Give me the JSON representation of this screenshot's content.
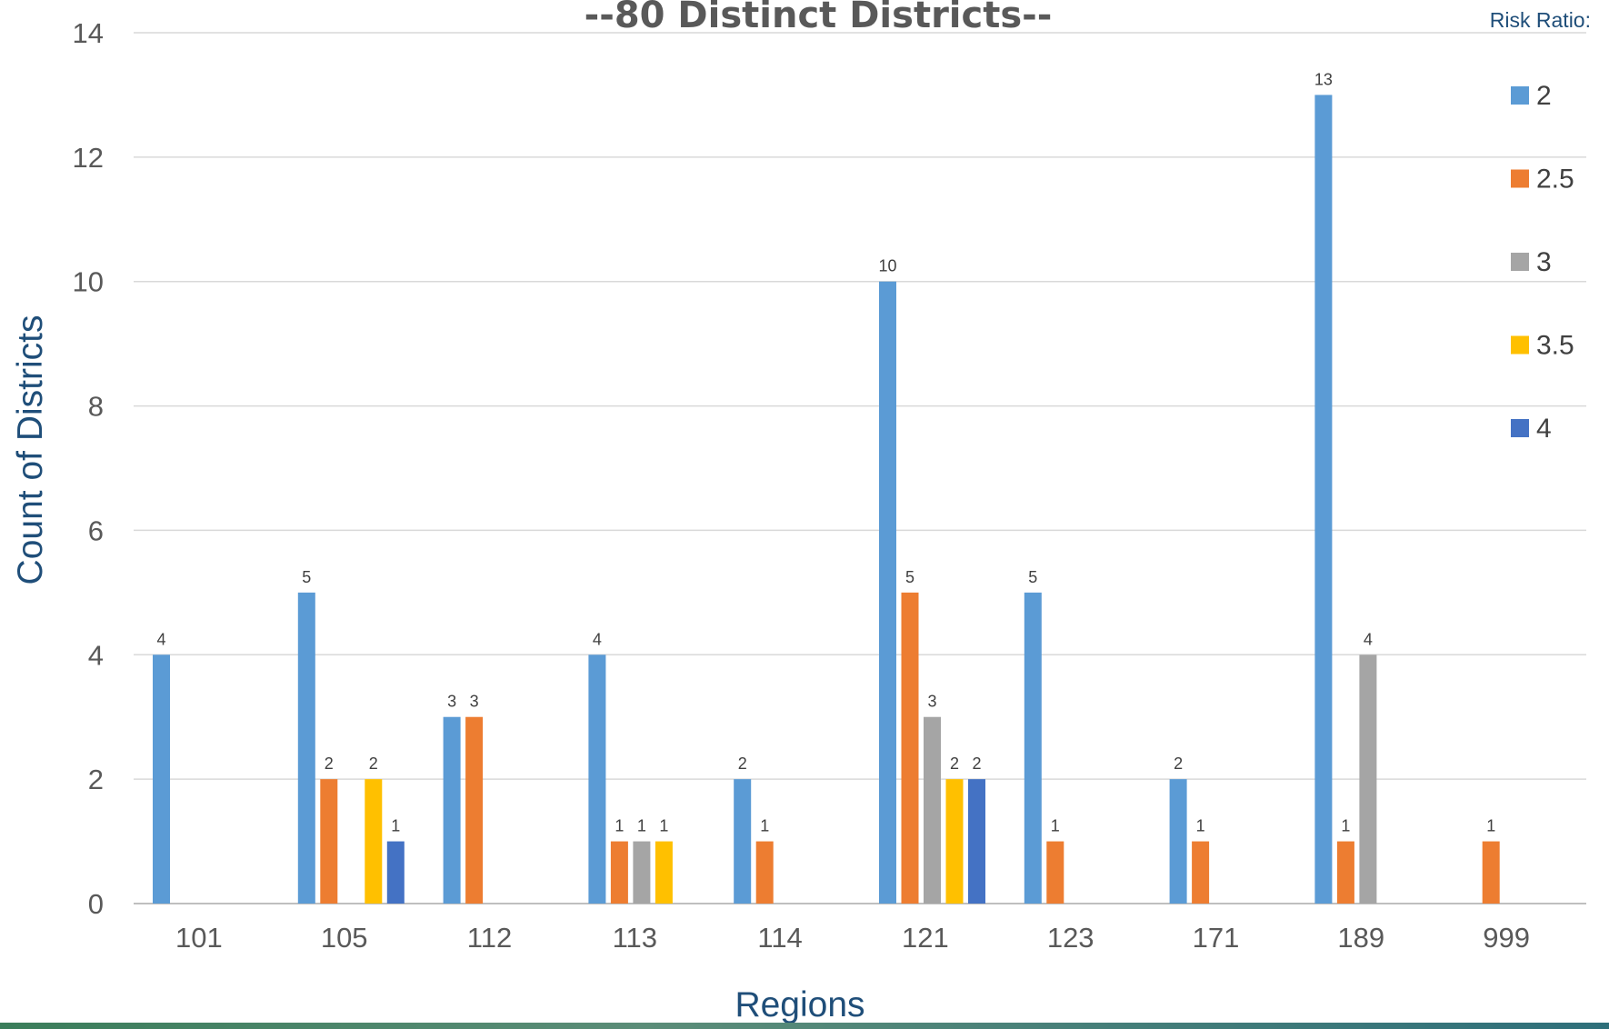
{
  "chart_data": {
    "type": "bar",
    "title": "--80 Distinct Districts--",
    "xlabel": "Regions",
    "ylabel": "Count of Districts",
    "ylim": [
      0,
      14
    ],
    "yticks": [
      0,
      2,
      4,
      6,
      8,
      10,
      12,
      14
    ],
    "grid": true,
    "categories": [
      "101",
      "105",
      "112",
      "113",
      "114",
      "121",
      "123",
      "171",
      "189",
      "999"
    ],
    "legend": {
      "title": "Risk Ratio:",
      "placement": "right"
    },
    "series": [
      {
        "name": "2",
        "color": "#5b9bd5",
        "values": [
          4,
          5,
          3,
          4,
          2,
          10,
          5,
          2,
          13,
          null
        ]
      },
      {
        "name": "2.5",
        "color": "#ed7d31",
        "values": [
          null,
          2,
          3,
          1,
          1,
          5,
          1,
          1,
          1,
          1
        ]
      },
      {
        "name": "3",
        "color": "#a5a5a5",
        "values": [
          null,
          null,
          null,
          1,
          null,
          3,
          null,
          null,
          4,
          null
        ]
      },
      {
        "name": "3.5",
        "color": "#ffc000",
        "values": [
          null,
          2,
          null,
          1,
          null,
          2,
          null,
          null,
          null,
          null
        ]
      },
      {
        "name": "4",
        "color": "#4472c4",
        "values": [
          null,
          1,
          null,
          null,
          null,
          2,
          null,
          null,
          null,
          null
        ]
      }
    ]
  }
}
